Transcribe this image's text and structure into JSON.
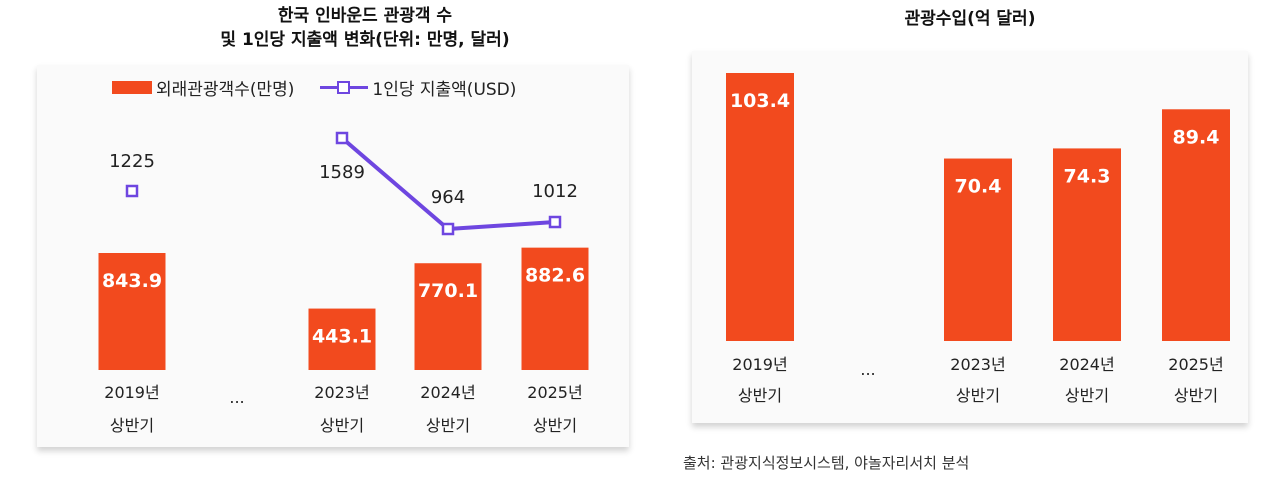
{
  "left_chart_title_line1": "한국 인바운드 관광객 수",
  "left_chart_title_line2": "및 1인당 지출액 변화(단위: 만명, 달러)",
  "right_chart_title": "관광수입(억 달러)",
  "source": "출처: 관광지식정보시스템, 야놀자리서치 분석",
  "colors": {
    "bar": "#f24a1e",
    "line": "#6e46e0"
  },
  "chart_data": [
    {
      "type": "bar",
      "title": "한국 인바운드 관광객 수 및 1인당 지출액 변화(단위: 만명, 달러)",
      "legend_position": "top",
      "categories": [
        [
          "2019년",
          "상반기"
        ],
        [
          "...",
          ""
        ],
        [
          "2023년",
          "상반기"
        ],
        [
          "2024년",
          "상반기"
        ],
        [
          "2025년",
          "상반기"
        ]
      ],
      "series": [
        {
          "name": "외래관광객수(만명)",
          "type": "bar",
          "values": [
            843.9,
            null,
            443.1,
            770.1,
            882.6
          ],
          "labels": [
            "843.9",
            "",
            "443.1",
            "770.1",
            "882.6"
          ]
        },
        {
          "name": "1인당 지출액(USD)",
          "type": "line",
          "values": [
            1225,
            null,
            1589,
            964,
            1012
          ],
          "labels": [
            "1225",
            "",
            "1589",
            "964",
            "1012"
          ]
        }
      ],
      "grid": false
    },
    {
      "type": "bar",
      "title": "관광수입(억 달러)",
      "categories": [
        [
          "2019년",
          "상반기"
        ],
        [
          "...",
          ""
        ],
        [
          "2023년",
          "상반기"
        ],
        [
          "2024년",
          "상반기"
        ],
        [
          "2025년",
          "상반기"
        ]
      ],
      "values": [
        103.4,
        null,
        70.4,
        74.3,
        89.4
      ],
      "labels": [
        "103.4",
        "",
        "70.4",
        "74.3",
        "89.4"
      ],
      "grid": false
    }
  ]
}
